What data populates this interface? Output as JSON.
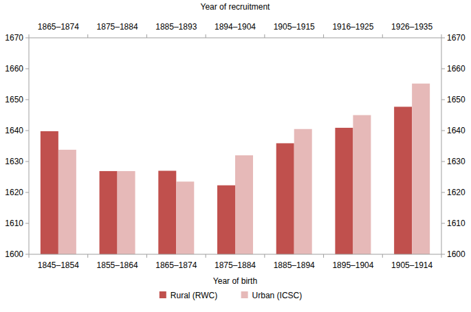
{
  "chart_data": {
    "type": "bar",
    "x_label": "Year of birth",
    "x2_label": "Year of recruitment",
    "categories": [
      "1845–1854",
      "1855–1864",
      "1865–1874",
      "1875–1884",
      "1885–1894",
      "1895–1904",
      "1905–1914"
    ],
    "x2_categories": [
      "1865–1874",
      "1875–1884",
      "1885–1893",
      "1894–1904",
      "1905–1915",
      "1916–1925",
      "1926–1935"
    ],
    "series": [
      {
        "name": "Rural (RWC)",
        "color": "#c0504d",
        "values": [
          1639.8,
          1626.9,
          1627.0,
          1622.3,
          1635.9,
          1640.9,
          1647.7
        ]
      },
      {
        "name": "Urban (ICSC)",
        "color": "#e6b9b8",
        "values": [
          1633.8,
          1626.9,
          1623.5,
          1632.0,
          1640.5,
          1645.0,
          1655.2
        ]
      }
    ],
    "ylim": [
      1600,
      1670
    ],
    "yticks": [
      1600,
      1610,
      1620,
      1630,
      1640,
      1650,
      1660,
      1670
    ],
    "grid": false,
    "legend": "bottom"
  }
}
